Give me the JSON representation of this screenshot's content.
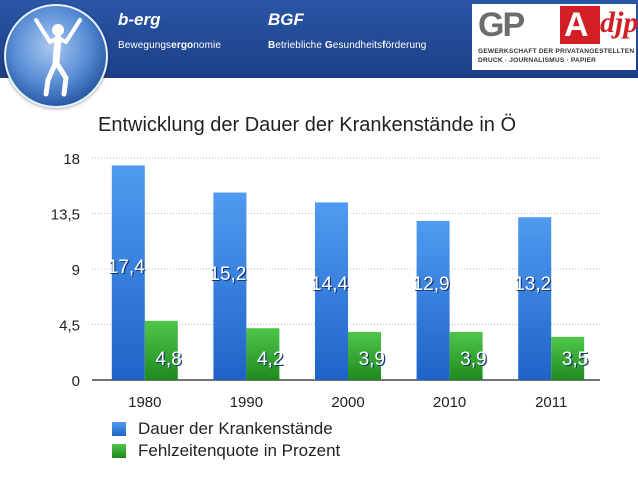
{
  "header": {
    "berg_title": "b-erg",
    "berg_sub_1": "Bewegungs",
    "berg_sub_2": "ergo",
    "berg_sub_3": "nomie",
    "bgf_title": "BGF",
    "bgf_sub_1": "B",
    "bgf_sub_2": "etriebliche ",
    "bgf_sub_3": "G",
    "bgf_sub_4": "esundheits",
    "bgf_sub_5": "f",
    "bgf_sub_6": "örderung",
    "gpa_letters": "GP",
    "gpa_a": "A",
    "gpa_djp": "djp",
    "gpa_line1": "GEWERKSCHAFT DER PRIVATANGESTELLTEN",
    "gpa_line2": "DRUCK · JOURNALISMUS · PAPIER"
  },
  "colors": {
    "header": "#1c3f86",
    "blue_series": "#2a74d8",
    "green_series": "#2f9e2c"
  },
  "chart_data": {
    "type": "bar",
    "title": "Entwicklung der Dauer der Krankenstände in Ö",
    "categories": [
      "1980",
      "1990",
      "2000",
      "2010",
      "2011"
    ],
    "series": [
      {
        "name": "Dauer der Krankenstände",
        "values": [
          17.4,
          15.2,
          14.4,
          12.9,
          13.2
        ],
        "labels": [
          "17,4",
          "15,2",
          "14,4",
          "12,9",
          "13,2"
        ]
      },
      {
        "name": "Fehlzeitenquote in Prozent",
        "values": [
          4.8,
          4.2,
          3.9,
          3.9,
          3.5
        ],
        "labels": [
          "4,8",
          "4,2",
          "3,9",
          "3,9",
          "3,5"
        ]
      }
    ],
    "yticks": [
      0,
      4.5,
      9,
      13.5,
      18
    ],
    "ytick_labels": [
      "0",
      "4,5",
      "9",
      "13,5",
      "18"
    ],
    "ylim": [
      0,
      18
    ],
    "grid": true,
    "legend_position": "bottom-left"
  }
}
